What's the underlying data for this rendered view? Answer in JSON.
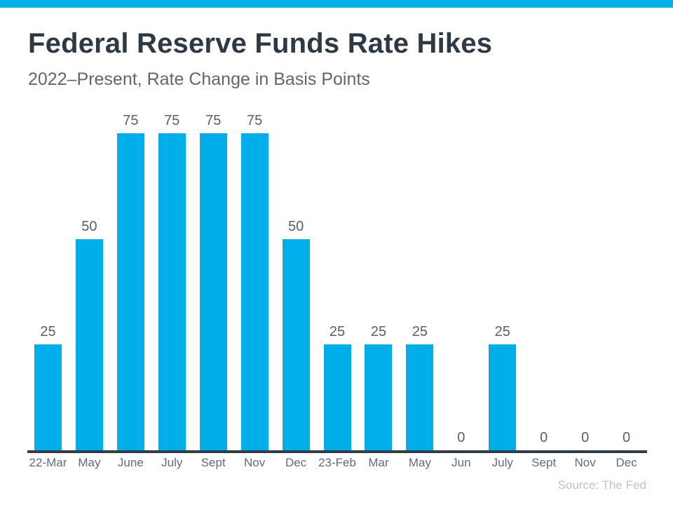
{
  "accent_color": "#00AEEA",
  "header": {
    "title": "Federal Reserve Funds Rate Hikes",
    "subtitle": "2022–Present, Rate Change in Basis Points"
  },
  "footer": {
    "source": "Source: The Fed"
  },
  "chart_data": {
    "type": "bar",
    "title": "Federal Reserve Funds Rate Hikes",
    "subtitle": "2022–Present, Rate Change in Basis Points",
    "categories": [
      "22-Mar",
      "May",
      "June",
      "July",
      "Sept",
      "Nov",
      "Dec",
      "23-Feb",
      "Mar",
      "May",
      "Jun",
      "July",
      "Sept",
      "Nov",
      "Dec"
    ],
    "values": [
      25,
      50,
      75,
      75,
      75,
      75,
      50,
      25,
      25,
      25,
      0,
      25,
      0,
      0,
      0
    ],
    "xlabel": "",
    "ylabel": "Rate Change in Basis Points",
    "ylim": [
      0,
      75
    ],
    "grid": false,
    "value_labels_shown": true,
    "bar_color": "#00AEEA",
    "axis_line_color": "#313d47",
    "legend_position": "none"
  }
}
